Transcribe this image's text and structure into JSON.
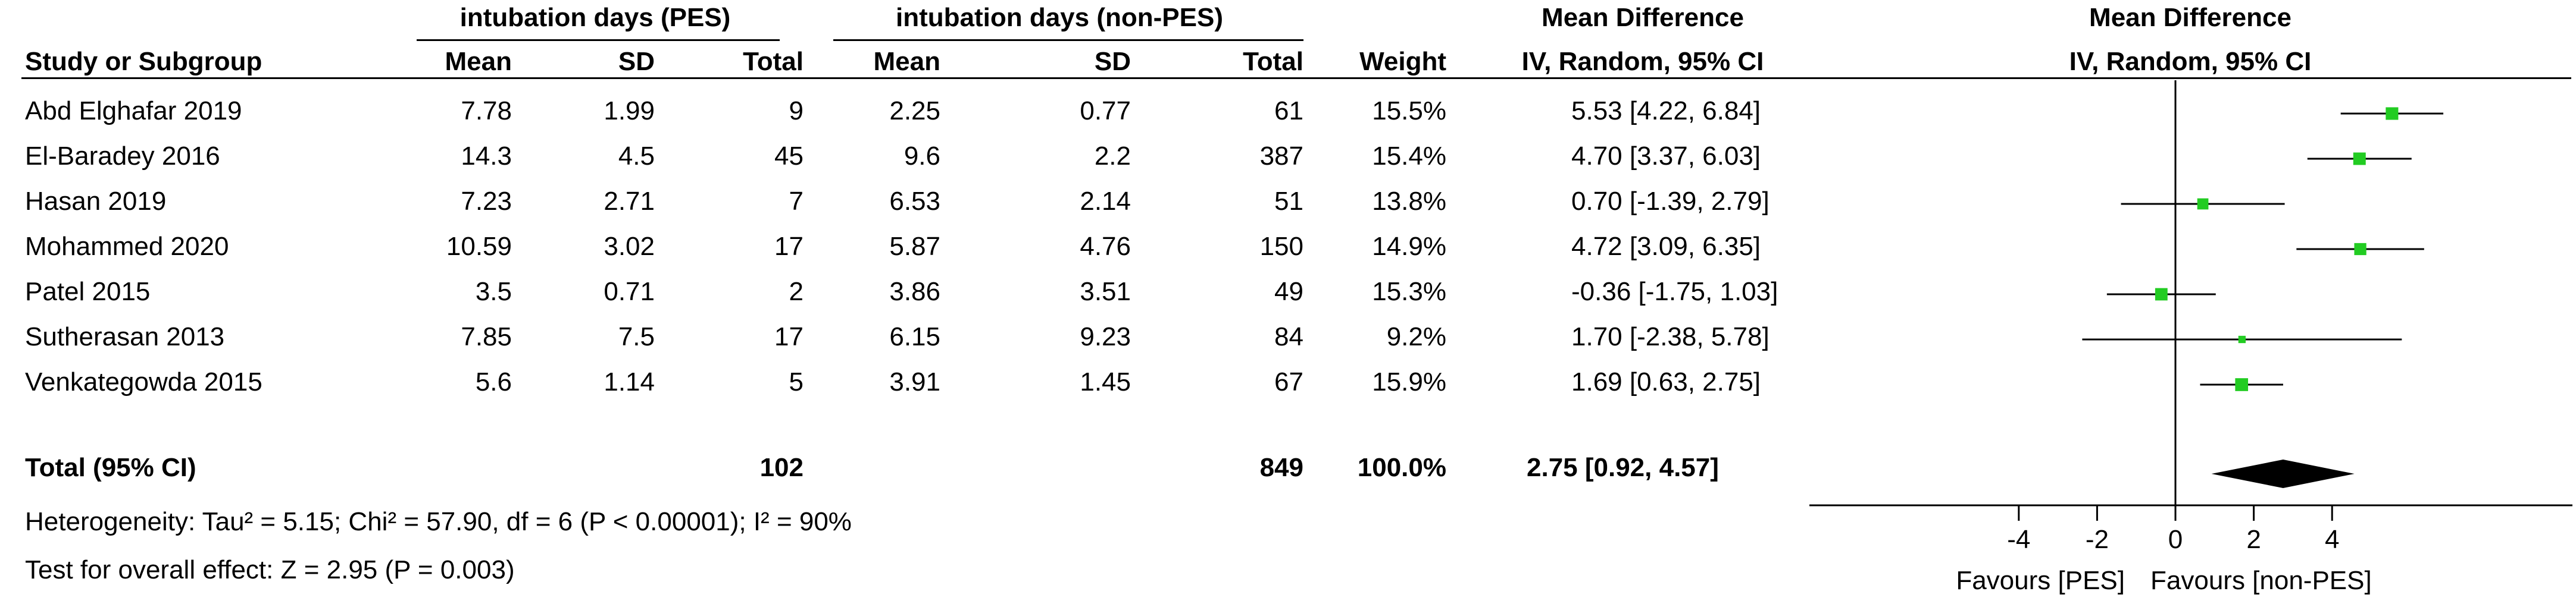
{
  "headers": {
    "group_pes": "intubation days (PES)",
    "group_nonpes": "intubation days (non-PES)",
    "effect_title": "Mean Difference",
    "effect_method": "IV, Random, 95% CI",
    "plot_title": "Mean Difference",
    "plot_method": "IV, Random, 95% CI",
    "study": "Study or Subgroup",
    "mean1": "Mean",
    "sd1": "SD",
    "total1": "Total",
    "mean2": "Mean",
    "sd2": "SD",
    "total2": "Total",
    "weight": "Weight"
  },
  "rows": [
    {
      "study": "Abd Elghafar 2019",
      "mean1": "7.78",
      "sd1": "1.99",
      "total1": "9",
      "mean2": "2.25",
      "sd2": "0.77",
      "total2": "61",
      "weight": "15.5%",
      "effect": "5.53 [4.22, 6.84]"
    },
    {
      "study": "El-Baradey 2016",
      "mean1": "14.3",
      "sd1": "4.5",
      "total1": "45",
      "mean2": "9.6",
      "sd2": "2.2",
      "total2": "387",
      "weight": "15.4%",
      "effect": "4.70 [3.37, 6.03]"
    },
    {
      "study": "Hasan 2019",
      "mean1": "7.23",
      "sd1": "2.71",
      "total1": "7",
      "mean2": "6.53",
      "sd2": "2.14",
      "total2": "51",
      "weight": "13.8%",
      "effect": "0.70 [-1.39, 2.79]"
    },
    {
      "study": "Mohammed 2020",
      "mean1": "10.59",
      "sd1": "3.02",
      "total1": "17",
      "mean2": "5.87",
      "sd2": "4.76",
      "total2": "150",
      "weight": "14.9%",
      "effect": "4.72 [3.09, 6.35]"
    },
    {
      "study": "Patel 2015",
      "mean1": "3.5",
      "sd1": "0.71",
      "total1": "2",
      "mean2": "3.86",
      "sd2": "3.51",
      "total2": "49",
      "weight": "15.3%",
      "effect": "-0.36 [-1.75, 1.03]"
    },
    {
      "study": "Sutherasan 2013",
      "mean1": "7.85",
      "sd1": "7.5",
      "total1": "17",
      "mean2": "6.15",
      "sd2": "9.23",
      "total2": "84",
      "weight": "9.2%",
      "effect": "1.70 [-2.38, 5.78]"
    },
    {
      "study": "Venkategowda 2015",
      "mean1": "5.6",
      "sd1": "1.14",
      "total1": "5",
      "mean2": "3.91",
      "sd2": "1.45",
      "total2": "67",
      "weight": "15.9%",
      "effect": "1.69 [0.63, 2.75]"
    }
  ],
  "total": {
    "label": "Total (95% CI)",
    "total1": "102",
    "total2": "849",
    "weight": "100.0%",
    "effect": "2.75 [0.92, 4.57]"
  },
  "heterogeneity": "Heterogeneity: Tau² = 5.15; Chi² = 57.90, df = 6 (P < 0.00001); I² = 90%",
  "overall_test": "Test for overall effect: Z = 2.95 (P = 0.003)",
  "favours_left": "Favours [PES]",
  "favours_right": "Favours [non-PES]",
  "colors": {
    "marker": "#22cc22",
    "diamond": "#000000",
    "line": "#000000"
  },
  "chart_data": {
    "type": "forest",
    "xlim": [
      -4,
      4
    ],
    "xticks": [
      -4,
      -2,
      0,
      2,
      4
    ],
    "studies": [
      {
        "name": "Abd Elghafar 2019",
        "md": 5.53,
        "lo": 4.22,
        "hi": 6.84,
        "weight": 15.5
      },
      {
        "name": "El-Baradey 2016",
        "md": 4.7,
        "lo": 3.37,
        "hi": 6.03,
        "weight": 15.4
      },
      {
        "name": "Hasan 2019",
        "md": 0.7,
        "lo": -1.39,
        "hi": 2.79,
        "weight": 13.8
      },
      {
        "name": "Mohammed 2020",
        "md": 4.72,
        "lo": 3.09,
        "hi": 6.35,
        "weight": 14.9
      },
      {
        "name": "Patel 2015",
        "md": -0.36,
        "lo": -1.75,
        "hi": 1.03,
        "weight": 15.3
      },
      {
        "name": "Sutherasan 2013",
        "md": 1.7,
        "lo": -2.38,
        "hi": 5.78,
        "weight": 9.2
      },
      {
        "name": "Venkategowda 2015",
        "md": 1.69,
        "lo": 0.63,
        "hi": 2.75,
        "weight": 15.9
      }
    ],
    "pooled": {
      "md": 2.75,
      "lo": 0.92,
      "hi": 4.57
    }
  }
}
